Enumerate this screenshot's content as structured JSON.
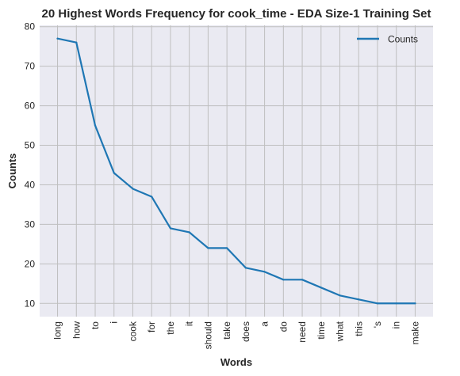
{
  "chart_data": {
    "type": "line",
    "title": "20 Highest Words Frequency for cook_time - EDA Size-1 Training Set",
    "xlabel": "Words",
    "ylabel": "Counts",
    "categories": [
      "long",
      "how",
      "to",
      "i",
      "cook",
      "for",
      "the",
      "it",
      "should",
      "take",
      "does",
      "a",
      "do",
      "need",
      "time",
      "what",
      "this",
      "'s",
      "in",
      "make"
    ],
    "series": [
      {
        "name": "Counts",
        "values": [
          77,
          76,
          55,
          43,
          39,
          37,
          29,
          28,
          24,
          24,
          19,
          18,
          16,
          16,
          14,
          12,
          11,
          10,
          10,
          10
        ]
      }
    ],
    "ylim": [
      6.65,
      80.35
    ],
    "yticks": [
      10,
      20,
      30,
      40,
      50,
      60,
      70,
      80
    ],
    "grid": true,
    "legend_position": "top-right",
    "colors": {
      "line": "#1f77b4",
      "plot_background": "#eaeaf2",
      "grid": "#bfbfbf"
    }
  }
}
